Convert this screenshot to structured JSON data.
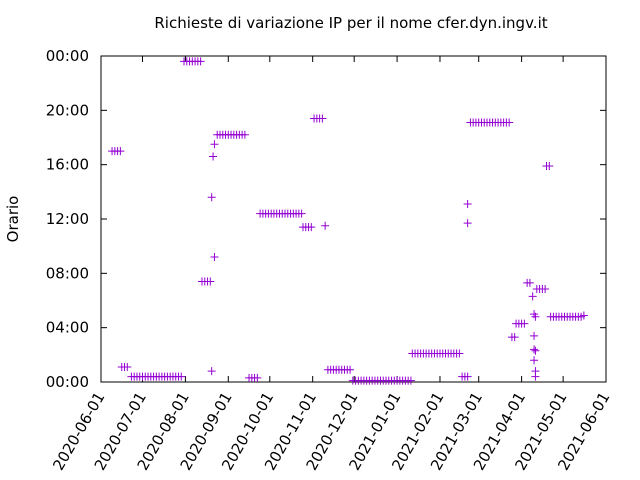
{
  "chart_data": {
    "type": "scatter",
    "title": "Richieste di variazione IP per il nome cfer.dyn.ingv.it",
    "y_label": "Orario",
    "color": "#9400d3",
    "xlim": [
      "2020-06-01",
      "2021-06-01"
    ],
    "xticks": [
      "2020-06-01",
      "2020-07-01",
      "2020-08-01",
      "2020-09-01",
      "2020-10-01",
      "2020-11-01",
      "2020-12-01",
      "2021-01-01",
      "2021-02-01",
      "2021-03-01",
      "2021-04-01",
      "2021-05-01",
      "2021-06-01"
    ],
    "ylim": [
      0,
      24
    ],
    "yticks": [
      {
        "value": 0,
        "label": "00:00"
      },
      {
        "value": 4,
        "label": "04:00"
      },
      {
        "value": 8,
        "label": "08:00"
      },
      {
        "value": 12,
        "label": "12:00"
      },
      {
        "value": 16,
        "label": "16:00"
      },
      {
        "value": 20,
        "label": "20:00"
      },
      {
        "value": 24,
        "label": "00:00"
      }
    ],
    "x": [
      "2020-06-09",
      "2020-06-11",
      "2020-06-13",
      "2020-06-15",
      "2020-06-16",
      "2020-06-18",
      "2020-06-20",
      "2020-06-23",
      "2020-06-25",
      "2020-06-27",
      "2020-06-29",
      "2020-07-01",
      "2020-07-03",
      "2020-07-05",
      "2020-07-07",
      "2020-07-09",
      "2020-07-11",
      "2020-07-13",
      "2020-07-15",
      "2020-07-17",
      "2020-07-19",
      "2020-07-21",
      "2020-07-23",
      "2020-07-25",
      "2020-07-27",
      "2020-07-29",
      "2020-07-31",
      "2020-08-02",
      "2020-08-04",
      "2020-08-06",
      "2020-08-08",
      "2020-08-10",
      "2020-08-12",
      "2020-08-13",
      "2020-08-15",
      "2020-08-17",
      "2020-08-19",
      "2020-08-20",
      "2020-08-21",
      "2020-08-22",
      "2020-08-20",
      "2020-08-22",
      "2020-08-24",
      "2020-08-26",
      "2020-08-28",
      "2020-08-30",
      "2020-09-01",
      "2020-09-03",
      "2020-09-05",
      "2020-09-07",
      "2020-09-09",
      "2020-09-11",
      "2020-09-13",
      "2020-09-16",
      "2020-09-18",
      "2020-09-20",
      "2020-09-22",
      "2020-09-24",
      "2020-09-26",
      "2020-09-28",
      "2020-09-30",
      "2020-10-02",
      "2020-10-04",
      "2020-10-06",
      "2020-10-08",
      "2020-10-10",
      "2020-10-12",
      "2020-10-14",
      "2020-10-16",
      "2020-10-18",
      "2020-10-20",
      "2020-10-22",
      "2020-10-24",
      "2020-10-25",
      "2020-10-27",
      "2020-10-29",
      "2020-10-31",
      "2020-11-02",
      "2020-11-04",
      "2020-11-06",
      "2020-11-08",
      "2020-11-10",
      "2020-11-12",
      "2020-11-14",
      "2020-11-16",
      "2020-11-18",
      "2020-11-20",
      "2020-11-22",
      "2020-11-24",
      "2020-11-26",
      "2020-11-28",
      "2020-11-30",
      "2020-12-02",
      "2020-12-04",
      "2020-12-06",
      "2020-12-08",
      "2020-12-10",
      "2020-12-12",
      "2020-12-14",
      "2020-12-16",
      "2020-12-18",
      "2020-12-20",
      "2020-12-22",
      "2020-12-24",
      "2020-12-26",
      "2020-12-28",
      "2020-12-30",
      "2021-01-01",
      "2021-01-03",
      "2021-01-05",
      "2021-01-07",
      "2021-01-09",
      "2021-01-11",
      "2021-01-12",
      "2021-01-14",
      "2021-01-16",
      "2021-01-18",
      "2021-01-20",
      "2021-01-22",
      "2021-01-24",
      "2021-01-26",
      "2021-01-28",
      "2021-01-30",
      "2021-02-01",
      "2021-02-03",
      "2021-02-05",
      "2021-02-07",
      "2021-02-09",
      "2021-02-11",
      "2021-02-13",
      "2021-02-15",
      "2021-02-17",
      "2021-02-19",
      "2021-02-21",
      "2021-02-21",
      "2021-02-21",
      "2021-02-23",
      "2021-02-25",
      "2021-02-27",
      "2021-03-01",
      "2021-03-03",
      "2021-03-05",
      "2021-03-07",
      "2021-03-09",
      "2021-03-11",
      "2021-03-13",
      "2021-03-15",
      "2021-03-17",
      "2021-03-19",
      "2021-03-21",
      "2021-03-23",
      "2021-03-25",
      "2021-03-27",
      "2021-03-28",
      "2021-03-30",
      "2021-04-01",
      "2021-04-03",
      "2021-04-05",
      "2021-04-07",
      "2021-04-09",
      "2021-04-10",
      "2021-04-11",
      "2021-04-10",
      "2021-04-10",
      "2021-04-11",
      "2021-04-10",
      "2021-04-11",
      "2021-04-11",
      "2021-04-12",
      "2021-04-14",
      "2021-04-16",
      "2021-04-18",
      "2021-04-19",
      "2021-04-21",
      "2021-04-22",
      "2021-04-24",
      "2021-04-26",
      "2021-04-28",
      "2021-04-30",
      "2021-05-02",
      "2021-05-04",
      "2021-05-06",
      "2021-05-08",
      "2021-05-10",
      "2021-05-12",
      "2021-05-14",
      "2021-05-16"
    ],
    "values": [
      17,
      17,
      17,
      17,
      1.1,
      1.1,
      1.1,
      0.4,
      0.4,
      0.4,
      0.4,
      0.4,
      0.4,
      0.4,
      0.4,
      0.4,
      0.4,
      0.4,
      0.4,
      0.4,
      0.4,
      0.4,
      0.4,
      0.4,
      0.4,
      0.4,
      23.6,
      23.6,
      23.6,
      23.6,
      23.6,
      23.6,
      23.6,
      7.4,
      7.4,
      7.4,
      7.4,
      13.6,
      16.6,
      17.5,
      0.8,
      9.2,
      18.2,
      18.2,
      18.2,
      18.2,
      18.2,
      18.2,
      18.2,
      18.2,
      18.2,
      18.2,
      18.2,
      0.3,
      0.3,
      0.3,
      0.3,
      12.4,
      12.4,
      12.4,
      12.4,
      12.4,
      12.4,
      12.4,
      12.4,
      12.4,
      12.4,
      12.4,
      12.4,
      12.4,
      12.4,
      12.4,
      12.4,
      11.4,
      11.4,
      11.4,
      11.4,
      19.4,
      19.4,
      19.4,
      19.4,
      11.5,
      0.9,
      0.9,
      0.9,
      0.9,
      0.9,
      0.9,
      0.9,
      0.9,
      0.9,
      0.1,
      0.1,
      0.1,
      0.1,
      0.1,
      0.1,
      0.1,
      0.1,
      0.1,
      0.1,
      0.1,
      0.1,
      0.1,
      0.1,
      0.1,
      0.1,
      0.1,
      0.1,
      0.1,
      0.1,
      0.1,
      0.1,
      2.1,
      2.1,
      2.1,
      2.1,
      2.1,
      2.1,
      2.1,
      2.1,
      2.1,
      2.1,
      2.1,
      2.1,
      2.1,
      2.1,
      2.1,
      2.1,
      2.1,
      2.1,
      0.4,
      0.4,
      0.4,
      13.1,
      11.7,
      19.1,
      19.1,
      19.1,
      19.1,
      19.1,
      19.1,
      19.1,
      19.1,
      19.1,
      19.1,
      19.1,
      19.1,
      19.1,
      19.1,
      19.1,
      3.3,
      3.3,
      4.3,
      4.3,
      4.3,
      4.3,
      7.3,
      7.3,
      6.3,
      5,
      4.8,
      3.4,
      2.4,
      2.3,
      1.6,
      0.8,
      0.4,
      6.85,
      6.85,
      6.85,
      6.85,
      15.9,
      15.9,
      4.8,
      4.8,
      4.8,
      4.8,
      4.8,
      4.8,
      4.8,
      4.8,
      4.8,
      4.8,
      4.8,
      4.8,
      4.9
    ]
  }
}
